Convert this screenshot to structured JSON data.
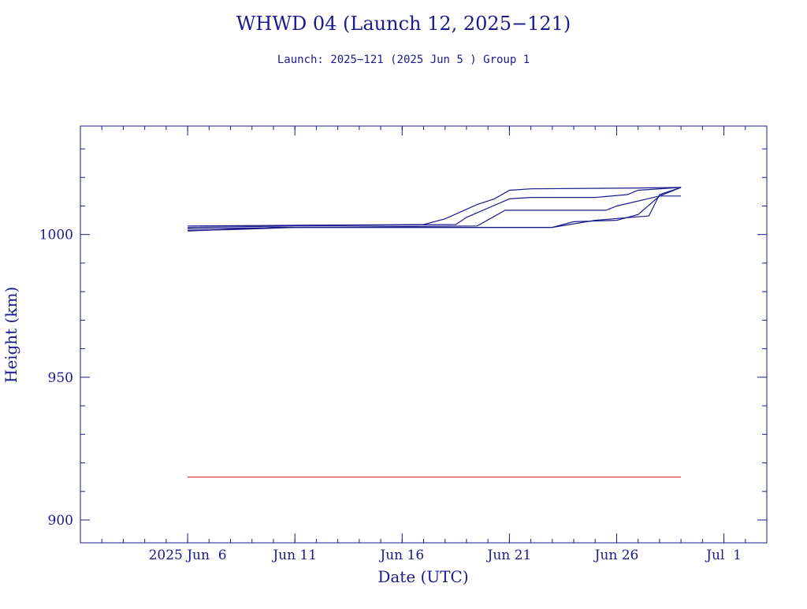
{
  "chart_data": {
    "type": "line",
    "title": "WHWD 04 (Launch 12, 2025−121)",
    "subtitle": "Launch: 2025−121  (2025 Jun  5 )  Group 1",
    "xlabel": "Date (UTC)",
    "ylabel": "Height (km)",
    "x_is_date": true,
    "xlim": [
      "2025-06-01",
      "2025-07-03"
    ],
    "ylim": [
      892,
      1038
    ],
    "x_ticks": [
      {
        "label": "2025 Jun  6",
        "value": "2025-06-06"
      },
      {
        "label": "Jun 11",
        "value": "2025-06-11"
      },
      {
        "label": "Jun 16",
        "value": "2025-06-16"
      },
      {
        "label": "Jun 21",
        "value": "2025-06-21"
      },
      {
        "label": "Jun 26",
        "value": "2025-06-26"
      },
      {
        "label": "Jul  1",
        "value": "2025-07-01"
      }
    ],
    "y_ticks": [
      {
        "label": "900",
        "value": 900
      },
      {
        "label": "950",
        "value": 950
      },
      {
        "label": "1000",
        "value": 1000
      }
    ],
    "y_minor_step": 10,
    "grid": false,
    "colors": {
      "axes": "#1a1a8c",
      "text": "#1a1a8c",
      "series": "#1a1a8c",
      "reference": "#e01010"
    },
    "series": [
      {
        "x": [
          "2025-06-06",
          "2025-06-10",
          "2025-06-17",
          "2025-06-18",
          "2025-06-19.5",
          "2025-06-20.3",
          "2025-06-21",
          "2025-06-22",
          "2025-06-27",
          "2025-06-29"
        ],
        "y": [
          1003.0,
          1003.2,
          1003.5,
          1005.5,
          1010.5,
          1012.5,
          1015.5,
          1016.0,
          1016.3,
          1016.5
        ]
      },
      {
        "x": [
          "2025-06-06",
          "2025-06-11",
          "2025-06-18.5",
          "2025-06-19",
          "2025-06-21",
          "2025-06-22",
          "2025-06-25",
          "2025-06-26.5",
          "2025-06-27",
          "2025-06-29"
        ],
        "y": [
          1002.5,
          1003.0,
          1003.5,
          1006.0,
          1012.5,
          1013.0,
          1013.0,
          1014.0,
          1015.5,
          1016.5
        ]
      },
      {
        "x": [
          "2025-06-06",
          "2025-06-11",
          "2025-06-19.5",
          "2025-06-20.8",
          "2025-06-22",
          "2025-06-25.5",
          "2025-06-26",
          "2025-06-28",
          "2025-06-29"
        ],
        "y": [
          1002.0,
          1002.5,
          1003.0,
          1008.5,
          1008.5,
          1008.5,
          1010.0,
          1013.5,
          1013.5
        ]
      },
      {
        "x": [
          "2025-06-06",
          "2025-06-08",
          "2025-06-11",
          "2025-06-22.5",
          "2025-06-23",
          "2025-06-25",
          "2025-06-27.5",
          "2025-06-28",
          "2025-06-29"
        ],
        "y": [
          1001.5,
          1001.7,
          1002.5,
          1002.5,
          1002.5,
          1005.0,
          1006.5,
          1014.0,
          1016.5
        ]
      },
      {
        "x": [
          "2025-06-06",
          "2025-06-10",
          "2025-06-23",
          "2025-06-24",
          "2025-06-26",
          "2025-06-27",
          "2025-06-28",
          "2025-06-29"
        ],
        "y": [
          1001.2,
          1002.5,
          1002.5,
          1004.5,
          1005.0,
          1007.0,
          1013.5,
          1016.5
        ]
      }
    ],
    "reference_lines": [
      {
        "y": 915,
        "x_start": "2025-06-06",
        "x_end": "2025-06-29"
      }
    ]
  }
}
